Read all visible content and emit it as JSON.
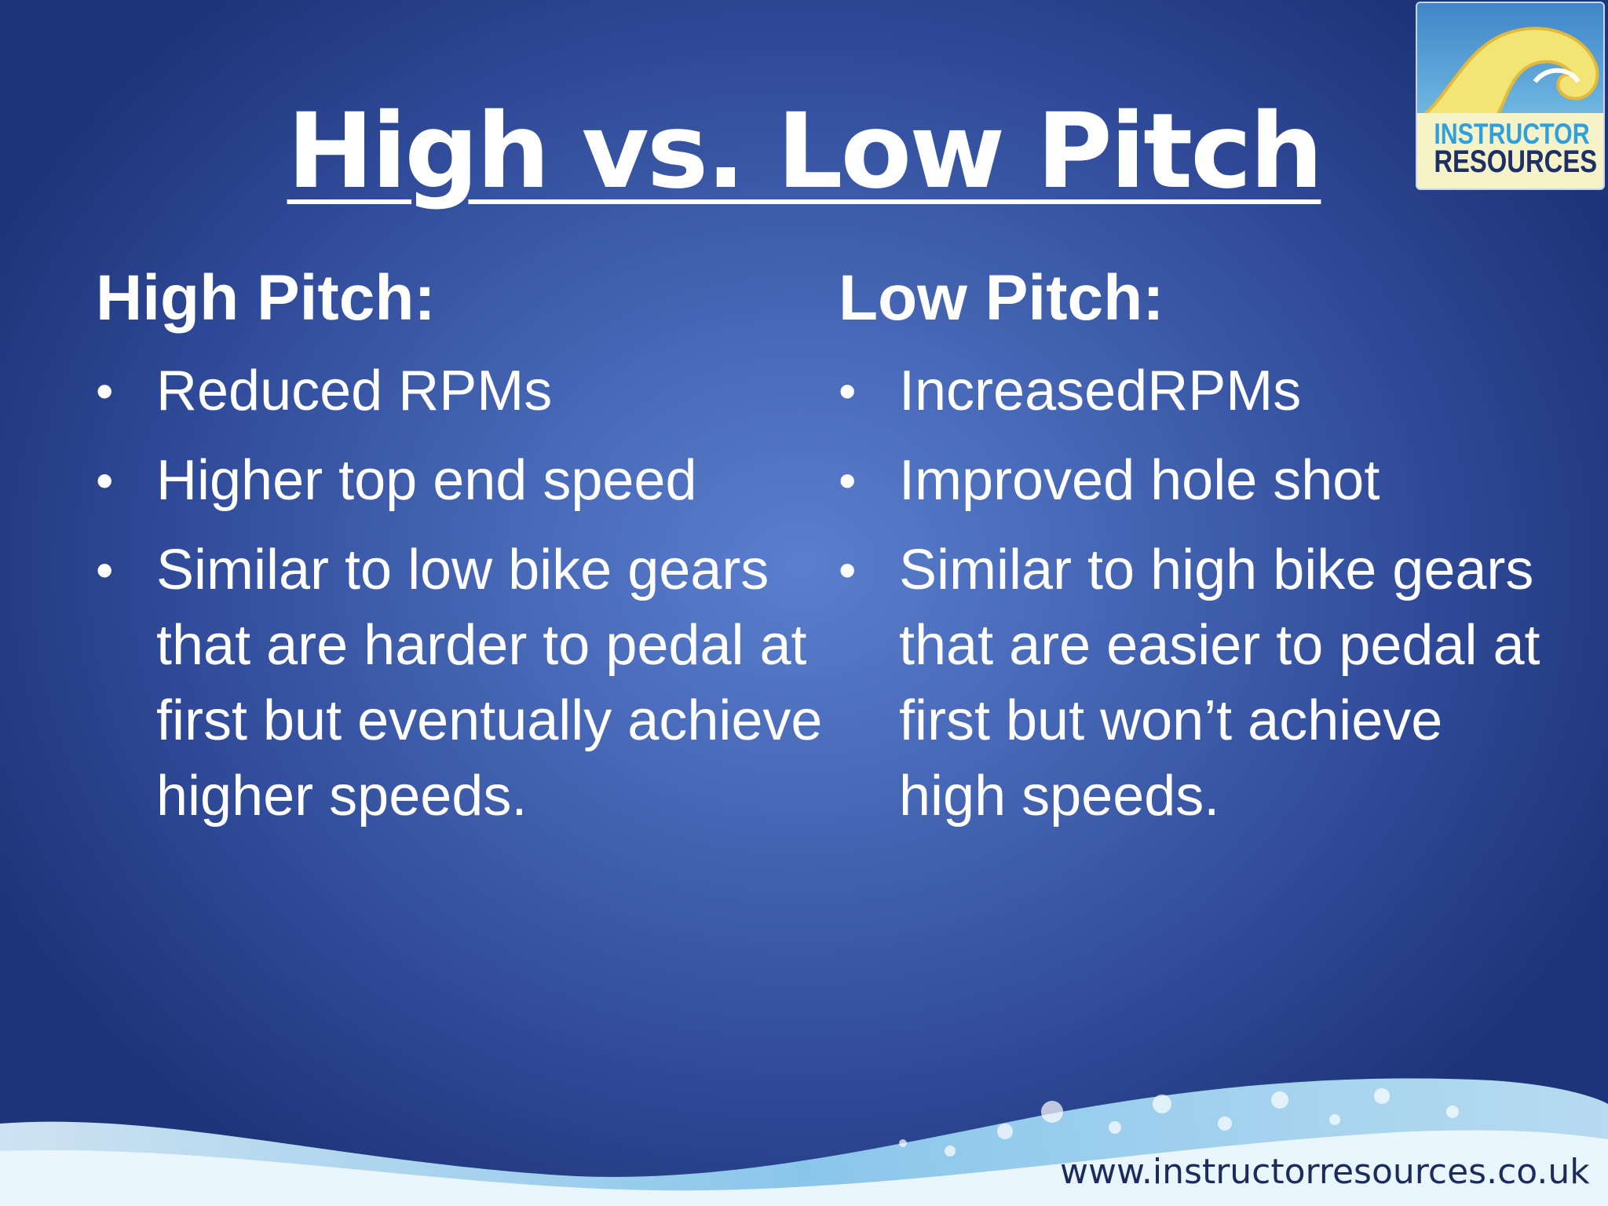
{
  "slide": {
    "title": "High vs. Low Pitch",
    "columns": [
      {
        "heading": "High Pitch:",
        "bullets": [
          "Reduced RPMs",
          "Higher top end speed",
          "Similar to low bike gears that are harder to pedal at first but eventually achieve higher speeds."
        ]
      },
      {
        "heading": "Low Pitch:",
        "bullets": [
          "IncreasedRPMs",
          "Improved hole shot",
          "Similar to high bike gears that are easier to pedal at first but won’t achieve high speeds."
        ]
      }
    ],
    "footer_url": "www.instructorresources.co.uk"
  },
  "logo": {
    "line1": "INSTRUCTOR",
    "line2": "RESOURCES"
  },
  "colors": {
    "background": "#3f5fae",
    "text": "#ffffff",
    "logo_blue": "#2fa0dc",
    "logo_navy": "#1c2f66"
  },
  "bullet_glyph": "•"
}
